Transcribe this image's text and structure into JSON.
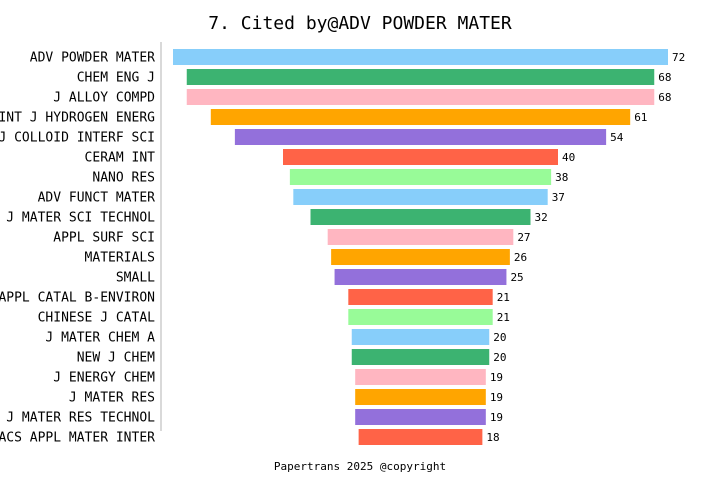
{
  "chart_data": {
    "type": "bar",
    "orientation": "horizontal-centered",
    "title": "7. Cited by@ADV POWDER MATER",
    "footer": "Papertrans 2025 @copyright",
    "categories": [
      "ADV POWDER MATER",
      "CHEM ENG J",
      "J ALLOY COMPD",
      "INT J HYDROGEN ENERG",
      "J COLLOID INTERF SCI",
      "CERAM INT",
      "NANO RES",
      "ADV FUNCT MATER",
      "J MATER SCI TECHNOL",
      "APPL SURF SCI",
      "MATERIALS",
      "SMALL",
      "APPL CATAL B-ENVIRON",
      "CHINESE J CATAL",
      "J MATER CHEM A",
      "NEW J CHEM",
      "J ENERGY CHEM",
      "J MATER RES",
      "J MATER RES TECHNOL",
      "ACS APPL MATER INTER"
    ],
    "values": [
      72,
      68,
      68,
      61,
      54,
      40,
      38,
      37,
      32,
      27,
      26,
      25,
      21,
      21,
      20,
      20,
      19,
      19,
      19,
      18
    ],
    "colors": [
      "#87CEFA",
      "#3CB371",
      "#FFB6C1",
      "#FFA500",
      "#9370DB",
      "#FF6347",
      "#98FB98"
    ],
    "data_labels": true,
    "grid": false
  }
}
